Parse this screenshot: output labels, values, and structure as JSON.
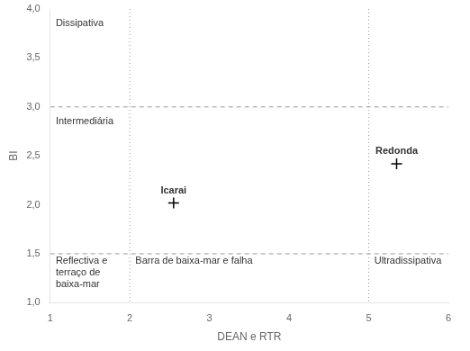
{
  "chart_data": {
    "type": "scatter",
    "xlabel": "DEAN e RTR",
    "ylabel": "BI",
    "xlim": [
      1,
      6
    ],
    "ylim": [
      1.0,
      4.0
    ],
    "xticks": [
      1,
      2,
      3,
      4,
      5,
      6
    ],
    "yticks": [
      {
        "value": 1.0,
        "label": "1,0"
      },
      {
        "value": 1.5,
        "label": "1,5"
      },
      {
        "value": 2.0,
        "label": "2,0"
      },
      {
        "value": 2.5,
        "label": "2,5"
      },
      {
        "value": 3.0,
        "label": "3,0"
      },
      {
        "value": 3.5,
        "label": "3,5"
      },
      {
        "value": 4.0,
        "label": "4,0"
      }
    ],
    "grid": false,
    "series": [
      {
        "x": [
          2.55,
          5.35
        ],
        "values": [
          2.02,
          2.42
        ],
        "point_labels": [
          "Icarai",
          "Redonda"
        ],
        "marker": "plus",
        "color": "#000000"
      }
    ],
    "reference_lines": [
      {
        "axis": "x",
        "value": 2,
        "line_style": "dotted",
        "color": "#999999"
      },
      {
        "axis": "x",
        "value": 5,
        "line_style": "dotted",
        "color": "#999999"
      },
      {
        "axis": "y",
        "value": 1.5,
        "line_style": "dashed",
        "color": "#999999"
      },
      {
        "axis": "y",
        "value": 3.0,
        "line_style": "dashed",
        "color": "#999999"
      }
    ],
    "annotations": [
      {
        "x": 1.07,
        "y": 3.9,
        "text": "Dissipativa"
      },
      {
        "x": 1.07,
        "y": 2.9,
        "text": "Intermediária"
      },
      {
        "x": 1.07,
        "y": 1.48,
        "text": "Reflectiva e\nterraço de\nbaixa-mar"
      },
      {
        "x": 2.07,
        "y": 1.48,
        "text": "Barra de baixa-mar e falha"
      },
      {
        "x": 5.07,
        "y": 1.48,
        "text": "Ultradissipativa"
      }
    ]
  }
}
